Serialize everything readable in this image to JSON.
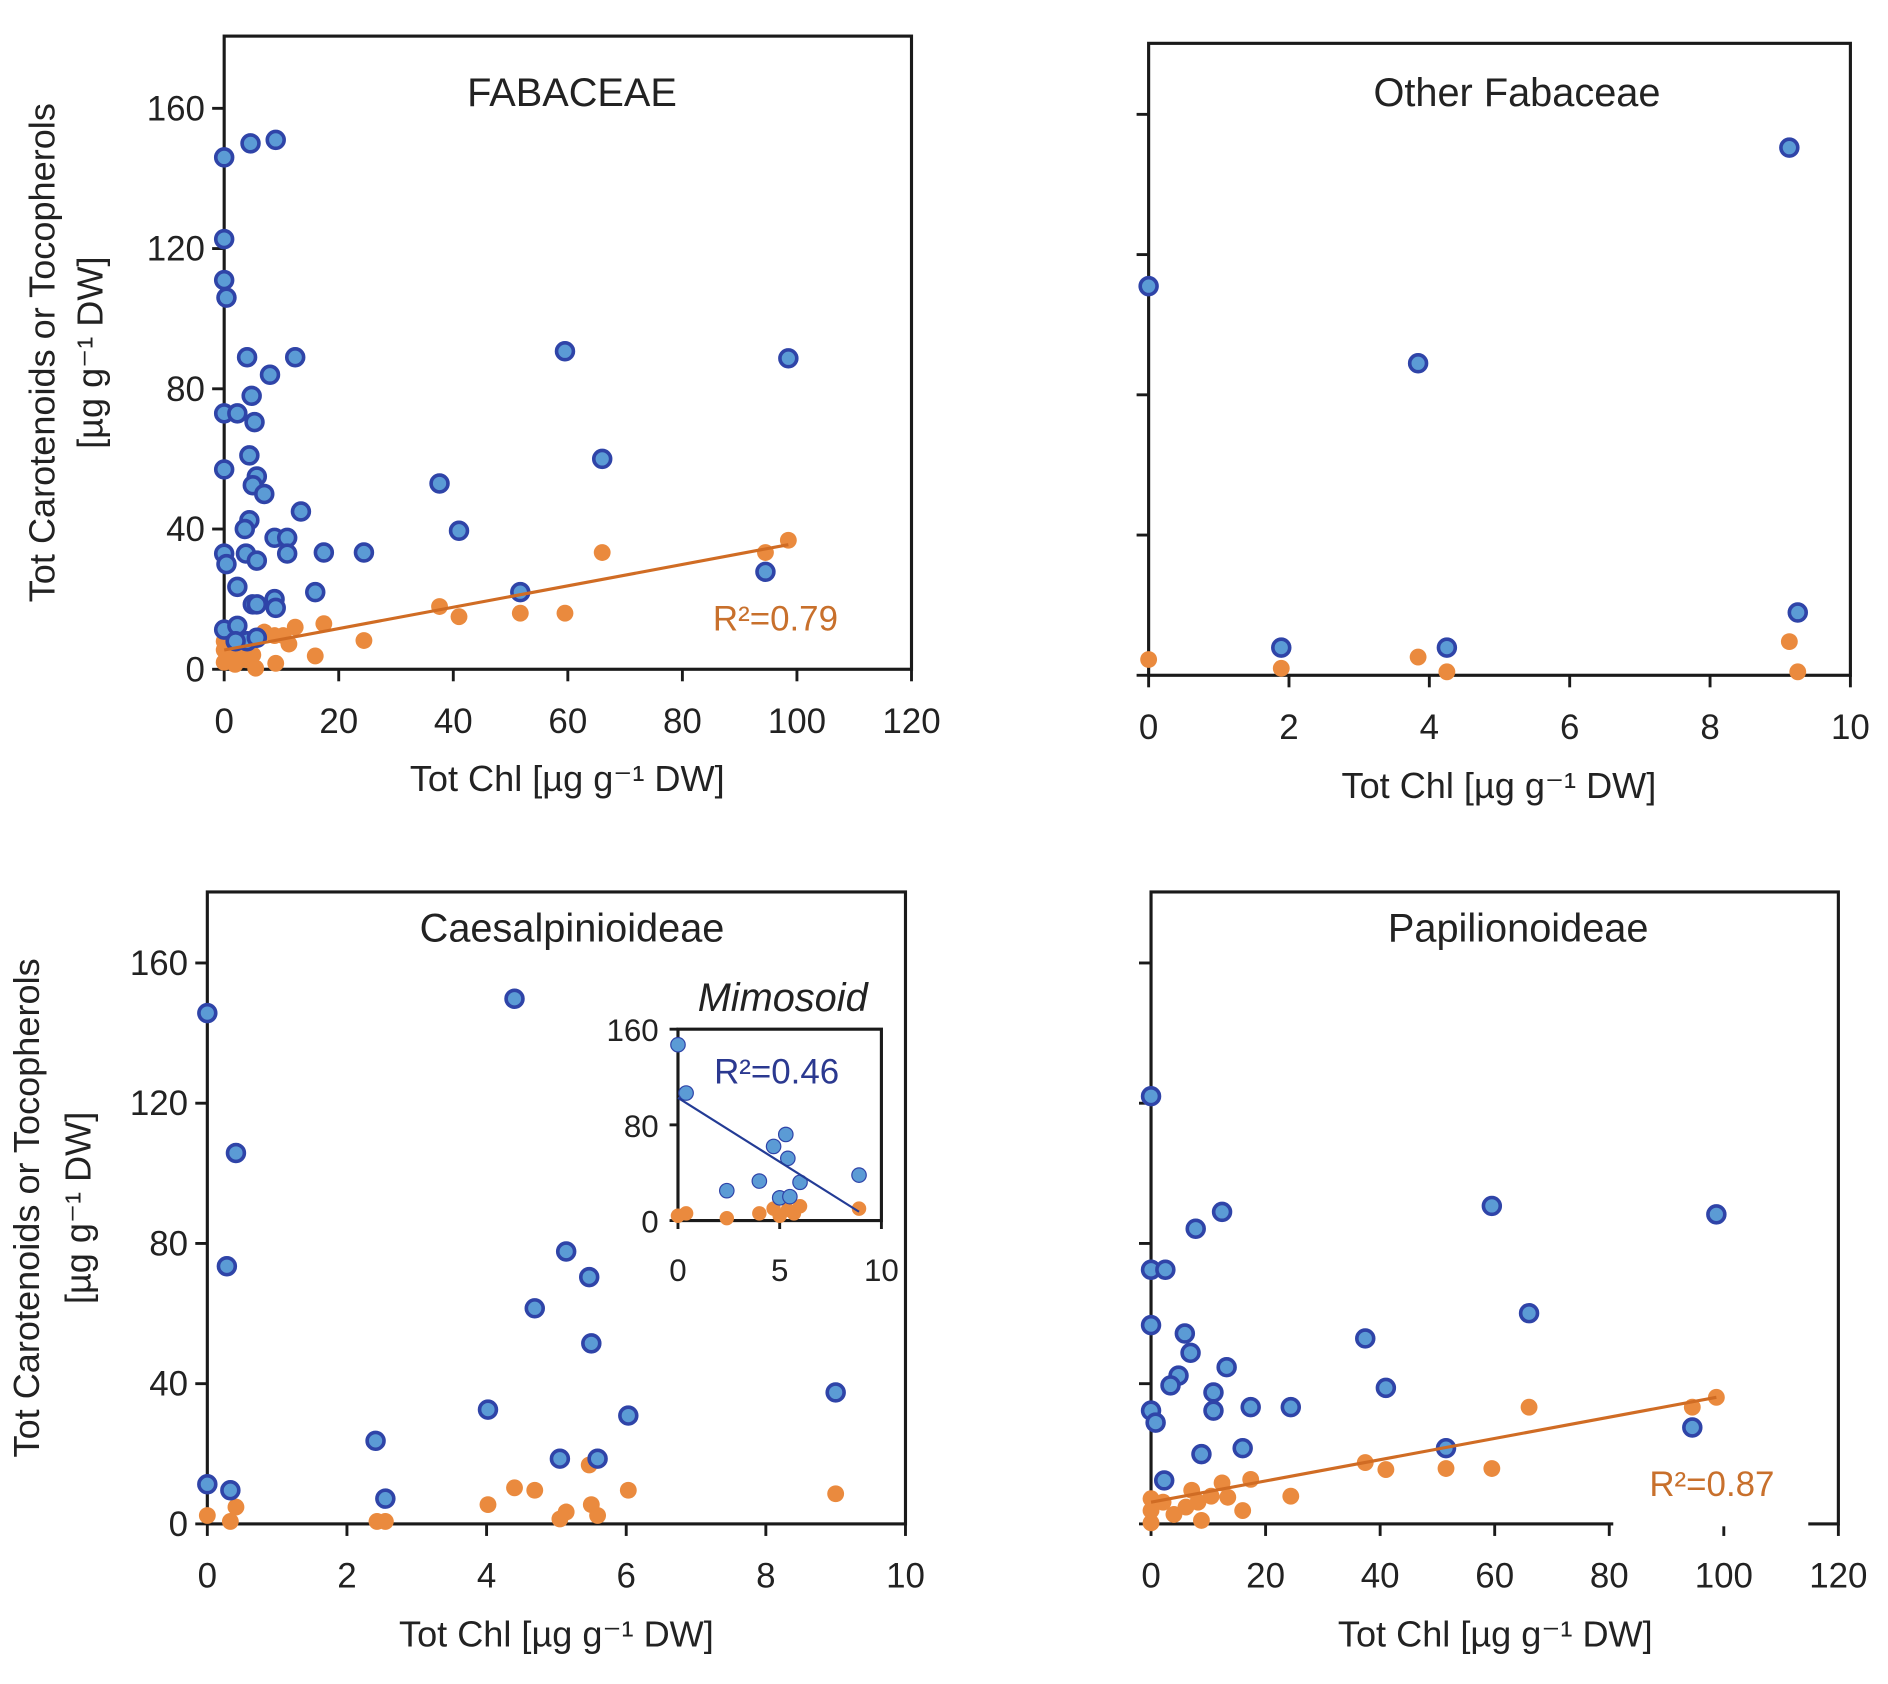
{
  "colors": {
    "carotenoids_fill": "#5b9bd5",
    "carotenoids_stroke": "#2f44a8",
    "tocopherols": "#ea8a3e",
    "trend_orange": "#d06c24",
    "trend_blue": "#233b95",
    "r2_orange": "#c8702c",
    "r2_blue": "#2b3990"
  },
  "chart_data": [
    {
      "id": "fabaceae",
      "type": "scatter",
      "title": "FABACEAE",
      "xlabel": "Tot Chl [µg g⁻¹ DW]",
      "ylabel": "Tot Carotenoids or Tocopherols",
      "ylabel2": "[µg g⁻¹ DW]",
      "xlim": [
        0,
        120
      ],
      "ylim": [
        0,
        180
      ],
      "xticks": [
        0,
        20,
        40,
        60,
        80,
        100,
        120
      ],
      "yticks": [
        0,
        40,
        80,
        120,
        160
      ],
      "show_ytick_labels": true,
      "annotation": "R²=0.79",
      "trend": {
        "series": "tocopherols",
        "intercept": 5.5,
        "slope": 0.305,
        "x_range": [
          0,
          98.5
        ]
      },
      "series": [
        {
          "name": "carotenoids",
          "points": [
            [
              0,
              146
            ],
            [
              4.6,
              150
            ],
            [
              9,
              151
            ],
            [
              0,
              122.7
            ],
            [
              0,
              111
            ],
            [
              0.4,
              106
            ],
            [
              4,
              89
            ],
            [
              12.4,
              89
            ],
            [
              8,
              84
            ],
            [
              4.8,
              78
            ],
            [
              0,
              73
            ],
            [
              2.3,
              73
            ],
            [
              5.3,
              70.5
            ],
            [
              0,
              57
            ],
            [
              4.4,
              61
            ],
            [
              5.7,
              55
            ],
            [
              5,
              52.5
            ],
            [
              7,
              50
            ],
            [
              13.4,
              45
            ],
            [
              4.4,
              42.5
            ],
            [
              3.6,
              40
            ],
            [
              8.8,
              37.5
            ],
            [
              11,
              37.5
            ],
            [
              0,
              33
            ],
            [
              0.4,
              30
            ],
            [
              3.8,
              33
            ],
            [
              5.7,
              31
            ],
            [
              11,
              33
            ],
            [
              17.4,
              33.3
            ],
            [
              24.4,
              33.3
            ],
            [
              2.3,
              23.5
            ],
            [
              15.9,
              22
            ],
            [
              5,
              18.5
            ],
            [
              5.7,
              18.5
            ],
            [
              8.8,
              20
            ],
            [
              9,
              17.5
            ],
            [
              0,
              11.3
            ],
            [
              2.3,
              12.4
            ],
            [
              4,
              8
            ],
            [
              5.7,
              9
            ],
            [
              2,
              8
            ],
            [
              37.6,
              53
            ],
            [
              41,
              39.5
            ],
            [
              51.7,
              22
            ],
            [
              59.5,
              90.7
            ],
            [
              66,
              60
            ],
            [
              94.5,
              27.8
            ],
            [
              98.5,
              88.7
            ]
          ]
        },
        {
          "name": "tocopherols",
          "points": [
            [
              94.5,
              33.3
            ],
            [
              98.5,
              36.8
            ],
            [
              66,
              33.3
            ],
            [
              37.6,
              17.9
            ],
            [
              41,
              15
            ],
            [
              51.7,
              16
            ],
            [
              59.5,
              16
            ],
            [
              24.4,
              8.2
            ],
            [
              17.4,
              13
            ],
            [
              15.9,
              3.8
            ],
            [
              12.4,
              12
            ],
            [
              9,
              1.7
            ],
            [
              0,
              5.5
            ],
            [
              0,
              2
            ],
            [
              0.8,
              3.4
            ],
            [
              1.9,
              1.4
            ],
            [
              2.9,
              5.5
            ],
            [
              4,
              2.7
            ],
            [
              5,
              4.1
            ],
            [
              6,
              9
            ],
            [
              7,
              10.6
            ],
            [
              8.8,
              9.6
            ],
            [
              10.3,
              9.6
            ],
            [
              11.3,
              7.2
            ],
            [
              4.4,
              6.9
            ],
            [
              0,
              8
            ],
            [
              5.5,
              0.3
            ]
          ]
        }
      ]
    },
    {
      "id": "other-fabaceae",
      "type": "scatter",
      "title": "Other Fabaceae",
      "xlabel": "Tot Chl [µg g⁻¹ DW]",
      "xlim": [
        0,
        10
      ],
      "ylim": [
        0,
        180
      ],
      "xticks": [
        0,
        2,
        4,
        6,
        8,
        10
      ],
      "yticks": [
        0,
        40,
        80,
        120,
        160
      ],
      "show_ytick_labels": false,
      "series": [
        {
          "name": "carotenoids",
          "points": [
            [
              0,
              111
            ],
            [
              3.84,
              89
            ],
            [
              9.13,
              150.5
            ],
            [
              1.89,
              7.9
            ],
            [
              4.25,
              7.9
            ],
            [
              9.25,
              17.9
            ]
          ]
        },
        {
          "name": "tocopherols",
          "points": [
            [
              0,
              4.5
            ],
            [
              1.89,
              2
            ],
            [
              3.84,
              5.2
            ],
            [
              4.25,
              1
            ],
            [
              9.13,
              9.6
            ],
            [
              9.25,
              1
            ]
          ]
        }
      ]
    },
    {
      "id": "caesalpinioideae",
      "type": "scatter",
      "title": "Caesalpinioideae",
      "xlabel": "Tot Chl [µg g⁻¹ DW]",
      "ylabel": "Tot Carotenoids or Tocopherols",
      "ylabel2": "[µg g⁻¹ DW]",
      "xlim": [
        0,
        10
      ],
      "ylim": [
        0,
        160
      ],
      "xticks": [
        0,
        2,
        4,
        6,
        8,
        10
      ],
      "yticks": [
        0,
        40,
        80,
        120,
        160
      ],
      "show_ytick_labels": true,
      "series": [
        {
          "name": "carotenoids",
          "points": [
            [
              0,
              145.7
            ],
            [
              4.4,
              149.8
            ],
            [
              0.41,
              105.8
            ],
            [
              0.28,
              73.5
            ],
            [
              4.69,
              61.5
            ],
            [
              5.14,
              77.7
            ],
            [
              5.47,
              70.4
            ],
            [
              5.5,
              51.5
            ],
            [
              4.02,
              32.6
            ],
            [
              6.03,
              30.9
            ],
            [
              9,
              37.5
            ],
            [
              2.41,
              23.7
            ],
            [
              5.05,
              18.6
            ],
            [
              5.59,
              18.6
            ],
            [
              2.55,
              7.2
            ],
            [
              0,
              11.3
            ],
            [
              0.33,
              9.6
            ]
          ]
        },
        {
          "name": "tocopherols",
          "points": [
            [
              0,
              2.4
            ],
            [
              0.41,
              4.8
            ],
            [
              0.33,
              0.7
            ],
            [
              2.43,
              0.7
            ],
            [
              2.55,
              0.7
            ],
            [
              4.02,
              5.5
            ],
            [
              4.4,
              10.3
            ],
            [
              4.69,
              9.6
            ],
            [
              5.05,
              1.4
            ],
            [
              5.14,
              3.4
            ],
            [
              5.47,
              16.8
            ],
            [
              5.5,
              5.5
            ],
            [
              5.59,
              2.4
            ],
            [
              6.03,
              9.6
            ],
            [
              9,
              8.6
            ]
          ]
        }
      ]
    },
    {
      "id": "mimosoid-inset",
      "type": "scatter",
      "title": "Mimosoid",
      "xlim": [
        0,
        10
      ],
      "ylim": [
        0,
        160
      ],
      "xticks": [
        0,
        5,
        10
      ],
      "yticks": [
        0,
        80,
        160
      ],
      "show_ytick_labels": true,
      "annotation": "R²=0.46",
      "trend": {
        "series": "carotenoids",
        "intercept": 102.6,
        "slope": -10.7,
        "x_range": [
          0,
          8.9
        ]
      },
      "series": [
        {
          "name": "carotenoids",
          "points": [
            [
              0,
              147
            ],
            [
              0.4,
              106.6
            ],
            [
              2.4,
              25
            ],
            [
              4,
              33
            ],
            [
              4.7,
              62
            ],
            [
              5.3,
              72
            ],
            [
              5.4,
              52
            ],
            [
              5,
              19
            ],
            [
              5.5,
              20
            ],
            [
              6,
              32
            ],
            [
              8.9,
              38
            ]
          ]
        },
        {
          "name": "tocopherols",
          "points": [
            [
              0,
              4
            ],
            [
              0.4,
              6
            ],
            [
              2.4,
              2
            ],
            [
              4,
              6
            ],
            [
              4.7,
              10
            ],
            [
              5,
              4
            ],
            [
              5.4,
              9
            ],
            [
              5.7,
              6
            ],
            [
              6,
              12
            ],
            [
              8.9,
              10
            ]
          ]
        }
      ]
    },
    {
      "id": "papilionoideae",
      "type": "scatter",
      "title": "Papilionoideae",
      "xlabel": "Tot Chl [µg g⁻¹ DW]",
      "xlim": [
        0,
        120
      ],
      "ylim": [
        0,
        160
      ],
      "xticks": [
        0,
        20,
        40,
        60,
        80,
        100,
        120
      ],
      "yticks": [
        0,
        40,
        80,
        120,
        160
      ],
      "show_ytick_labels": false,
      "annotation": "R²=0.87",
      "trend": {
        "series": "tocopherols",
        "intercept": 6.2,
        "slope": 0.303,
        "x_range": [
          0,
          98.7
        ]
      },
      "series": [
        {
          "name": "carotenoids",
          "points": [
            [
              0,
              122
            ],
            [
              0,
              72.5
            ],
            [
              2.5,
              72.5
            ],
            [
              0,
              56.7
            ],
            [
              5.9,
              54.3
            ],
            [
              6.9,
              48.8
            ],
            [
              4.8,
              42.3
            ],
            [
              3.4,
              39.5
            ],
            [
              0,
              32.3
            ],
            [
              0.8,
              28.9
            ],
            [
              10.9,
              37.5
            ],
            [
              10.9,
              32.3
            ],
            [
              13.2,
              44.7
            ],
            [
              17.4,
              33.3
            ],
            [
              24.4,
              33.3
            ],
            [
              16,
              21.6
            ],
            [
              8.8,
              19.9
            ],
            [
              2.3,
              12.4
            ],
            [
              7.8,
              84.2
            ],
            [
              12.4,
              89
            ],
            [
              37.4,
              52.9
            ],
            [
              41,
              38.8
            ],
            [
              51.5,
              21.6
            ],
            [
              59.5,
              90.7
            ],
            [
              66,
              60.1
            ],
            [
              94.5,
              27.5
            ],
            [
              98.7,
              88.3
            ]
          ]
        },
        {
          "name": "tocopherols",
          "points": [
            [
              98.7,
              36.1
            ],
            [
              94.5,
              33.3
            ],
            [
              66,
              33.3
            ],
            [
              37.4,
              17.5
            ],
            [
              41,
              15.5
            ],
            [
              51.5,
              15.8
            ],
            [
              59.5,
              15.8
            ],
            [
              24.4,
              7.9
            ],
            [
              17.4,
              12.7
            ],
            [
              16,
              3.8
            ],
            [
              12.4,
              11.7
            ],
            [
              8.8,
              1
            ],
            [
              0,
              7.2
            ],
            [
              0,
              3.8
            ],
            [
              0,
              0.3
            ],
            [
              2.1,
              6.2
            ],
            [
              4,
              2.7
            ],
            [
              6.1,
              4.8
            ],
            [
              7.1,
              9.6
            ],
            [
              8.2,
              6.2
            ],
            [
              10.5,
              7.9
            ],
            [
              13.4,
              7.6
            ]
          ]
        }
      ]
    }
  ]
}
